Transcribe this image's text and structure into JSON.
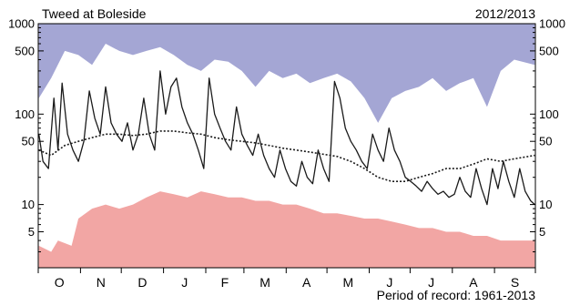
{
  "chart_data": {
    "type": "area",
    "title": "Tweed at Boleside",
    "subtitle": "2012/2013",
    "caption": "Period of record: 1961-2013",
    "x_start_month": "Oct 2012",
    "xlabels": [
      "O",
      "N",
      "D",
      "J",
      "F",
      "M",
      "A",
      "M",
      "J",
      "J",
      "A",
      "S"
    ],
    "yscale": "log",
    "ylim": [
      2,
      1000
    ],
    "ytick_labels": [
      {
        "value": 1000,
        "label": "1000"
      },
      {
        "value": 500,
        "label": "500"
      },
      {
        "value": 100,
        "label": "100"
      },
      {
        "value": 50,
        "label": "50"
      },
      {
        "value": 10,
        "label": "10"
      },
      {
        "value": 5,
        "label": "5"
      }
    ],
    "grid": false,
    "colors": {
      "max_band": "#a4a6d4",
      "min_band": "#f2a6a4",
      "flow_line": "#1a1a1a",
      "mean_line": "#1a1a1a",
      "axis": "#000000"
    },
    "series": [
      {
        "key": "max",
        "style": "filled-from-top",
        "points": [
          {
            "x": 1,
            "y": 150
          },
          {
            "x": 10,
            "y": 250
          },
          {
            "x": 20,
            "y": 500
          },
          {
            "x": 30,
            "y": 450
          },
          {
            "x": 40,
            "y": 350
          },
          {
            "x": 50,
            "y": 600
          },
          {
            "x": 60,
            "y": 500
          },
          {
            "x": 70,
            "y": 450
          },
          {
            "x": 80,
            "y": 500
          },
          {
            "x": 90,
            "y": 550
          },
          {
            "x": 100,
            "y": 450
          },
          {
            "x": 110,
            "y": 350
          },
          {
            "x": 120,
            "y": 300
          },
          {
            "x": 130,
            "y": 400
          },
          {
            "x": 140,
            "y": 380
          },
          {
            "x": 150,
            "y": 300
          },
          {
            "x": 160,
            "y": 200
          },
          {
            "x": 170,
            "y": 300
          },
          {
            "x": 180,
            "y": 250
          },
          {
            "x": 190,
            "y": 280
          },
          {
            "x": 200,
            "y": 220
          },
          {
            "x": 210,
            "y": 250
          },
          {
            "x": 220,
            "y": 280
          },
          {
            "x": 230,
            "y": 230
          },
          {
            "x": 240,
            "y": 150
          },
          {
            "x": 250,
            "y": 80
          },
          {
            "x": 260,
            "y": 150
          },
          {
            "x": 270,
            "y": 180
          },
          {
            "x": 280,
            "y": 200
          },
          {
            "x": 290,
            "y": 250
          },
          {
            "x": 300,
            "y": 180
          },
          {
            "x": 310,
            "y": 220
          },
          {
            "x": 320,
            "y": 250
          },
          {
            "x": 330,
            "y": 120
          },
          {
            "x": 340,
            "y": 300
          },
          {
            "x": 350,
            "y": 400
          },
          {
            "x": 365,
            "y": 350
          }
        ]
      },
      {
        "key": "min",
        "style": "filled-from-bottom",
        "points": [
          {
            "x": 1,
            "y": 3.5
          },
          {
            "x": 10,
            "y": 3.0
          },
          {
            "x": 15,
            "y": 4.0
          },
          {
            "x": 25,
            "y": 3.5
          },
          {
            "x": 30,
            "y": 7.0
          },
          {
            "x": 40,
            "y": 9.0
          },
          {
            "x": 50,
            "y": 10.0
          },
          {
            "x": 60,
            "y": 9.0
          },
          {
            "x": 70,
            "y": 10.0
          },
          {
            "x": 80,
            "y": 12.0
          },
          {
            "x": 90,
            "y": 14.0
          },
          {
            "x": 100,
            "y": 13.0
          },
          {
            "x": 110,
            "y": 12.0
          },
          {
            "x": 120,
            "y": 14.0
          },
          {
            "x": 130,
            "y": 13.0
          },
          {
            "x": 140,
            "y": 12.0
          },
          {
            "x": 150,
            "y": 12.0
          },
          {
            "x": 160,
            "y": 11.0
          },
          {
            "x": 170,
            "y": 11.0
          },
          {
            "x": 180,
            "y": 10.0
          },
          {
            "x": 190,
            "y": 10.0
          },
          {
            "x": 200,
            "y": 9.0
          },
          {
            "x": 210,
            "y": 8.0
          },
          {
            "x": 220,
            "y": 8.0
          },
          {
            "x": 230,
            "y": 7.5
          },
          {
            "x": 240,
            "y": 7.0
          },
          {
            "x": 250,
            "y": 7.0
          },
          {
            "x": 260,
            "y": 6.5
          },
          {
            "x": 270,
            "y": 6.0
          },
          {
            "x": 280,
            "y": 5.5
          },
          {
            "x": 290,
            "y": 5.5
          },
          {
            "x": 300,
            "y": 5.0
          },
          {
            "x": 310,
            "y": 5.0
          },
          {
            "x": 320,
            "y": 4.5
          },
          {
            "x": 330,
            "y": 4.5
          },
          {
            "x": 340,
            "y": 4.0
          },
          {
            "x": 350,
            "y": 4.0
          },
          {
            "x": 365,
            "y": 4.0
          }
        ]
      },
      {
        "key": "mean",
        "style": "dotted",
        "points": [
          {
            "x": 1,
            "y": 40
          },
          {
            "x": 10,
            "y": 35
          },
          {
            "x": 20,
            "y": 45
          },
          {
            "x": 30,
            "y": 50
          },
          {
            "x": 40,
            "y": 55
          },
          {
            "x": 50,
            "y": 60
          },
          {
            "x": 60,
            "y": 60
          },
          {
            "x": 70,
            "y": 58
          },
          {
            "x": 80,
            "y": 60
          },
          {
            "x": 90,
            "y": 65
          },
          {
            "x": 100,
            "y": 65
          },
          {
            "x": 110,
            "y": 62
          },
          {
            "x": 120,
            "y": 60
          },
          {
            "x": 130,
            "y": 55
          },
          {
            "x": 140,
            "y": 52
          },
          {
            "x": 150,
            "y": 50
          },
          {
            "x": 160,
            "y": 48
          },
          {
            "x": 170,
            "y": 45
          },
          {
            "x": 180,
            "y": 42
          },
          {
            "x": 190,
            "y": 40
          },
          {
            "x": 200,
            "y": 38
          },
          {
            "x": 210,
            "y": 36
          },
          {
            "x": 220,
            "y": 34
          },
          {
            "x": 230,
            "y": 30
          },
          {
            "x": 240,
            "y": 25
          },
          {
            "x": 250,
            "y": 20
          },
          {
            "x": 260,
            "y": 18
          },
          {
            "x": 270,
            "y": 18
          },
          {
            "x": 280,
            "y": 20
          },
          {
            "x": 290,
            "y": 22
          },
          {
            "x": 300,
            "y": 25
          },
          {
            "x": 310,
            "y": 25
          },
          {
            "x": 320,
            "y": 28
          },
          {
            "x": 330,
            "y": 32
          },
          {
            "x": 340,
            "y": 30
          },
          {
            "x": 350,
            "y": 32
          },
          {
            "x": 365,
            "y": 35
          }
        ]
      },
      {
        "key": "flow",
        "style": "solid",
        "points": [
          {
            "x": 1,
            "y": 60
          },
          {
            "x": 4,
            "y": 30
          },
          {
            "x": 8,
            "y": 25
          },
          {
            "x": 12,
            "y": 150
          },
          {
            "x": 15,
            "y": 40
          },
          {
            "x": 18,
            "y": 220
          },
          {
            "x": 22,
            "y": 60
          },
          {
            "x": 26,
            "y": 40
          },
          {
            "x": 30,
            "y": 30
          },
          {
            "x": 34,
            "y": 50
          },
          {
            "x": 38,
            "y": 180
          },
          {
            "x": 42,
            "y": 90
          },
          {
            "x": 46,
            "y": 60
          },
          {
            "x": 50,
            "y": 200
          },
          {
            "x": 54,
            "y": 80
          },
          {
            "x": 58,
            "y": 60
          },
          {
            "x": 62,
            "y": 50
          },
          {
            "x": 66,
            "y": 80
          },
          {
            "x": 70,
            "y": 40
          },
          {
            "x": 74,
            "y": 60
          },
          {
            "x": 78,
            "y": 150
          },
          {
            "x": 82,
            "y": 60
          },
          {
            "x": 86,
            "y": 40
          },
          {
            "x": 90,
            "y": 300
          },
          {
            "x": 94,
            "y": 100
          },
          {
            "x": 98,
            "y": 200
          },
          {
            "x": 102,
            "y": 250
          },
          {
            "x": 106,
            "y": 120
          },
          {
            "x": 110,
            "y": 80
          },
          {
            "x": 114,
            "y": 60
          },
          {
            "x": 118,
            "y": 40
          },
          {
            "x": 122,
            "y": 25
          },
          {
            "x": 126,
            "y": 250
          },
          {
            "x": 130,
            "y": 100
          },
          {
            "x": 134,
            "y": 70
          },
          {
            "x": 138,
            "y": 50
          },
          {
            "x": 142,
            "y": 40
          },
          {
            "x": 146,
            "y": 120
          },
          {
            "x": 150,
            "y": 60
          },
          {
            "x": 154,
            "y": 45
          },
          {
            "x": 158,
            "y": 35
          },
          {
            "x": 162,
            "y": 60
          },
          {
            "x": 166,
            "y": 35
          },
          {
            "x": 170,
            "y": 25
          },
          {
            "x": 174,
            "y": 20
          },
          {
            "x": 178,
            "y": 40
          },
          {
            "x": 182,
            "y": 25
          },
          {
            "x": 186,
            "y": 18
          },
          {
            "x": 190,
            "y": 16
          },
          {
            "x": 194,
            "y": 30
          },
          {
            "x": 198,
            "y": 20
          },
          {
            "x": 202,
            "y": 17
          },
          {
            "x": 206,
            "y": 40
          },
          {
            "x": 210,
            "y": 25
          },
          {
            "x": 214,
            "y": 18
          },
          {
            "x": 218,
            "y": 230
          },
          {
            "x": 222,
            "y": 150
          },
          {
            "x": 226,
            "y": 70
          },
          {
            "x": 230,
            "y": 50
          },
          {
            "x": 234,
            "y": 40
          },
          {
            "x": 238,
            "y": 30
          },
          {
            "x": 242,
            "y": 25
          },
          {
            "x": 246,
            "y": 60
          },
          {
            "x": 250,
            "y": 40
          },
          {
            "x": 254,
            "y": 30
          },
          {
            "x": 258,
            "y": 70
          },
          {
            "x": 262,
            "y": 40
          },
          {
            "x": 266,
            "y": 30
          },
          {
            "x": 270,
            "y": 20
          },
          {
            "x": 274,
            "y": 18
          },
          {
            "x": 278,
            "y": 16
          },
          {
            "x": 282,
            "y": 14
          },
          {
            "x": 286,
            "y": 18
          },
          {
            "x": 290,
            "y": 15
          },
          {
            "x": 294,
            "y": 13
          },
          {
            "x": 298,
            "y": 14
          },
          {
            "x": 302,
            "y": 12
          },
          {
            "x": 306,
            "y": 13
          },
          {
            "x": 310,
            "y": 20
          },
          {
            "x": 314,
            "y": 14
          },
          {
            "x": 318,
            "y": 12
          },
          {
            "x": 322,
            "y": 25
          },
          {
            "x": 326,
            "y": 15
          },
          {
            "x": 330,
            "y": 10
          },
          {
            "x": 334,
            "y": 25
          },
          {
            "x": 338,
            "y": 15
          },
          {
            "x": 342,
            "y": 30
          },
          {
            "x": 346,
            "y": 18
          },
          {
            "x": 350,
            "y": 12
          },
          {
            "x": 354,
            "y": 25
          },
          {
            "x": 358,
            "y": 14
          },
          {
            "x": 362,
            "y": 11
          },
          {
            "x": 365,
            "y": 10
          }
        ]
      }
    ]
  }
}
